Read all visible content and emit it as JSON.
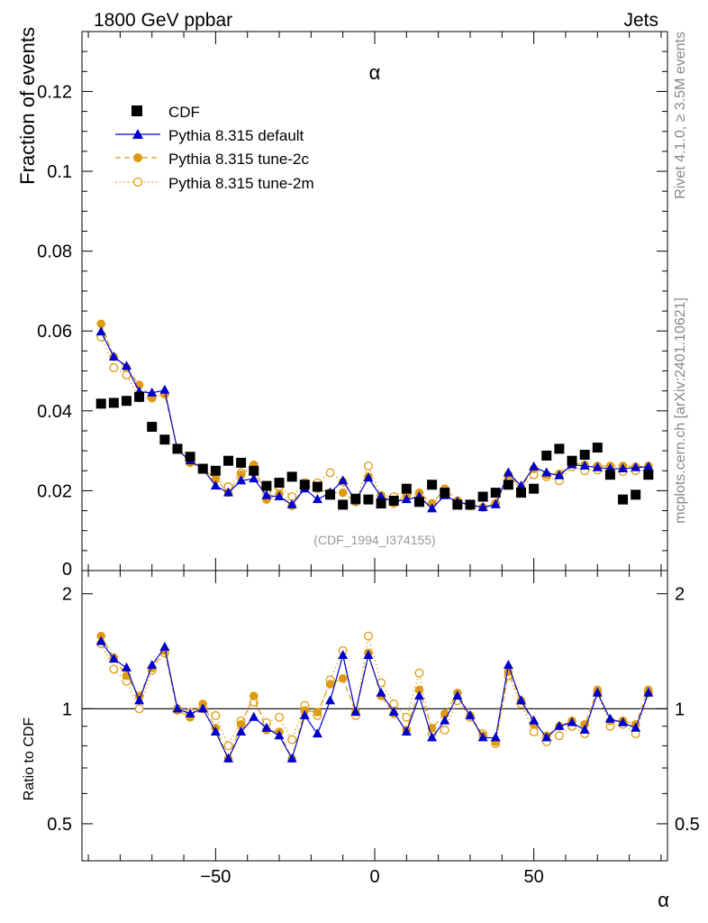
{
  "header": {
    "left": "1800 GeV ppbar",
    "right": "Jets"
  },
  "side_labels": {
    "top": "Rivet 4.1.0, ≥ 3.5M events",
    "bottom": "mcplots.cern.ch [arXiv:2401.10621]"
  },
  "watermark": "(CDF_1994_I374155)",
  "colors": {
    "cdf": "#000000",
    "default": "#0000cc",
    "tune2c": "#e09a10",
    "tune2m": "#e09a10"
  },
  "chart_data": [
    {
      "type": "scatter",
      "title": "α",
      "xlabel": "α",
      "ylabel": "Fraction of events",
      "xlim": [
        -92,
        92
      ],
      "ylim": [
        0,
        0.135
      ],
      "yticks": [
        0.02,
        0.04,
        0.06,
        0.08,
        0.1,
        0.12
      ],
      "ytick_labels": [
        "0.02",
        "0.04",
        "0.06",
        "0.08",
        "0.1",
        "0.12"
      ],
      "ytick_zero_label": "0",
      "legend_position": "top-left",
      "x": [
        -86,
        -82,
        -78,
        -74,
        -70,
        -66,
        -62,
        -58,
        -54,
        -50,
        -46,
        -42,
        -38,
        -34,
        -30,
        -26,
        -22,
        -18,
        -14,
        -10,
        -6,
        -2,
        2,
        6,
        10,
        14,
        18,
        22,
        26,
        30,
        34,
        38,
        42,
        46,
        50,
        54,
        58,
        62,
        66,
        70,
        74,
        78,
        82,
        86
      ],
      "series": [
        {
          "name": "CDF",
          "style": "square",
          "values": [
            0.0418,
            0.042,
            0.0425,
            0.0435,
            0.036,
            0.0328,
            0.0305,
            0.0285,
            0.0255,
            0.025,
            0.0275,
            0.027,
            0.025,
            0.0212,
            0.022,
            0.0235,
            0.0215,
            0.021,
            0.019,
            0.0165,
            0.018,
            0.0178,
            0.0168,
            0.0175,
            0.0205,
            0.0172,
            0.0215,
            0.0195,
            0.0165,
            0.0165,
            0.0185,
            0.0195,
            0.0215,
            0.0195,
            0.0205,
            0.0288,
            0.0305,
            0.0275,
            0.029,
            0.0308,
            0.024,
            0.0178,
            0.019,
            0.024
          ]
        },
        {
          "name": "Pythia 8.315 default",
          "style": "triangle-line",
          "values": [
            0.0598,
            0.0535,
            0.0512,
            0.0448,
            0.0445,
            0.0452,
            0.0302,
            0.0275,
            0.0255,
            0.0212,
            0.0195,
            0.0225,
            0.023,
            0.0188,
            0.0185,
            0.0165,
            0.0205,
            0.0178,
            0.0195,
            0.0225,
            0.0175,
            0.0232,
            0.0185,
            0.0172,
            0.0178,
            0.0185,
            0.0155,
            0.0188,
            0.0172,
            0.0165,
            0.0158,
            0.0165,
            0.0245,
            0.0212,
            0.026,
            0.0245,
            0.0238,
            0.0265,
            0.0262,
            0.0258,
            0.0255,
            0.0255,
            0.0258,
            0.026
          ]
        },
        {
          "name": "Pythia 8.315 tune-2c",
          "style": "circle-dashed",
          "values": [
            0.0618,
            0.0535,
            0.0508,
            0.0465,
            0.0435,
            0.0442,
            0.0305,
            0.027,
            0.0255,
            0.0228,
            0.0195,
            0.024,
            0.0265,
            0.0178,
            0.0192,
            0.0162,
            0.0215,
            0.0205,
            0.0195,
            0.0195,
            0.0172,
            0.0235,
            0.0185,
            0.0168,
            0.0188,
            0.0195,
            0.0168,
            0.0205,
            0.0175,
            0.0162,
            0.0158,
            0.0168,
            0.024,
            0.0208,
            0.0255,
            0.024,
            0.0242,
            0.027,
            0.0265,
            0.0262,
            0.0262,
            0.0262,
            0.026,
            0.0262
          ]
        },
        {
          "name": "Pythia 8.315 tune-2m",
          "style": "open-circle-dotted",
          "values": [
            0.0585,
            0.0508,
            0.049,
            0.0432,
            0.0432,
            0.0442,
            0.0305,
            0.028,
            0.0255,
            0.023,
            0.021,
            0.0245,
            0.0255,
            0.0195,
            0.021,
            0.0185,
            0.022,
            0.022,
            0.0245,
            0.0222,
            0.0175,
            0.0262,
            0.0188,
            0.0185,
            0.0205,
            0.0178,
            0.0168,
            0.019,
            0.0172,
            0.0162,
            0.0158,
            0.0168,
            0.0235,
            0.0205,
            0.024,
            0.0235,
            0.0225,
            0.026,
            0.025,
            0.0252,
            0.0248,
            0.0248,
            0.025,
            0.0252
          ]
        }
      ]
    },
    {
      "type": "scatter",
      "xlabel": "α",
      "ylabel": "Ratio to CDF",
      "xlim": [
        -92,
        92
      ],
      "ylim": [
        0.4,
        2.3
      ],
      "ylog": true,
      "yticks": [
        0.5,
        1,
        2
      ],
      "ytick_labels": [
        "0.5",
        "1",
        "2"
      ],
      "xticks": [
        -50,
        0,
        50
      ],
      "xtick_labels": [
        "−50",
        "0",
        "50"
      ],
      "reference_line": 1,
      "x": [
        -86,
        -82,
        -78,
        -74,
        -70,
        -66,
        -62,
        -58,
        -54,
        -50,
        -46,
        -42,
        -38,
        -34,
        -30,
        -26,
        -22,
        -18,
        -14,
        -10,
        -6,
        -2,
        2,
        6,
        10,
        14,
        18,
        22,
        26,
        30,
        34,
        38,
        42,
        46,
        50,
        54,
        58,
        62,
        66,
        70,
        74,
        78,
        82,
        86
      ],
      "series": [
        {
          "name": "Pythia 8.315 default",
          "style": "triangle-line",
          "values": [
            1.5,
            1.35,
            1.28,
            1.05,
            1.3,
            1.45,
            1.0,
            0.97,
            1.0,
            0.87,
            0.74,
            0.87,
            0.95,
            0.89,
            0.85,
            0.74,
            0.96,
            0.86,
            1.05,
            1.38,
            0.98,
            1.38,
            1.1,
            0.98,
            0.87,
            1.08,
            0.84,
            0.93,
            1.08,
            0.96,
            0.84,
            0.84,
            1.3,
            1.05,
            0.93,
            0.84,
            0.9,
            0.92,
            0.88,
            1.1,
            0.94,
            0.92,
            0.89,
            1.1
          ]
        },
        {
          "name": "Pythia 8.315 tune-2c",
          "style": "circle-dashed",
          "values": [
            1.55,
            1.36,
            1.22,
            1.08,
            1.28,
            1.42,
            0.99,
            0.95,
            1.03,
            0.89,
            0.74,
            0.91,
            1.08,
            0.88,
            0.87,
            0.74,
            0.99,
            0.98,
            1.16,
            1.2,
            0.98,
            1.4,
            1.08,
            0.97,
            0.88,
            1.12,
            0.89,
            0.97,
            1.1,
            0.96,
            0.85,
            0.82,
            1.25,
            1.05,
            0.91,
            0.85,
            0.9,
            0.93,
            0.91,
            1.12,
            0.93,
            0.93,
            0.91,
            1.12
          ]
        },
        {
          "name": "Pythia 8.315 tune-2m",
          "style": "open-circle-dotted",
          "values": [
            1.48,
            1.27,
            1.18,
            1.0,
            1.26,
            1.4,
            1.0,
            0.98,
            1.0,
            0.96,
            0.8,
            0.93,
            1.04,
            0.92,
            0.95,
            0.83,
            1.02,
            0.96,
            1.19,
            1.42,
            0.96,
            1.55,
            1.17,
            1.03,
            0.95,
            1.24,
            0.86,
            0.88,
            1.05,
            0.95,
            0.86,
            0.81,
            1.22,
            1.03,
            0.87,
            0.82,
            0.85,
            0.9,
            0.86,
            1.1,
            0.9,
            0.91,
            0.86,
            1.1
          ]
        }
      ]
    }
  ]
}
